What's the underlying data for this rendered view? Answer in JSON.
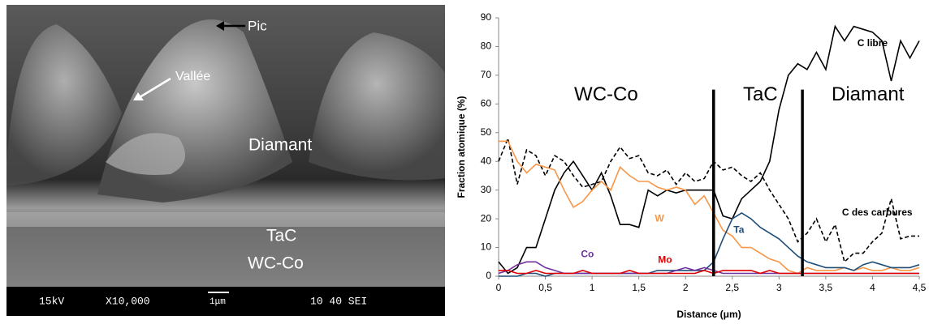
{
  "image": {
    "labels": [
      "Pic",
      "Vallée",
      "Diamant",
      "TaC",
      "WC-Co"
    ],
    "info_bar": [
      "15kV",
      "X10,000",
      "1μm",
      "10 40 SEI"
    ]
  },
  "chart_data": {
    "type": "line",
    "x_label": "Distance (μm)",
    "y_label": "Fraction atomique (%)",
    "x": [
      0,
      0.1,
      0.2,
      0.3,
      0.4,
      0.5,
      0.6,
      0.7,
      0.8,
      0.9,
      1,
      1.1,
      1.2,
      1.3,
      1.4,
      1.5,
      1.6,
      1.7,
      1.8,
      1.9,
      2,
      2.1,
      2.2,
      2.3,
      2.4,
      2.5,
      2.6,
      2.7,
      2.8,
      2.9,
      3,
      3.1,
      3.2,
      3.3,
      3.4,
      3.5,
      3.6,
      3.7,
      3.8,
      3.9,
      4,
      4.1,
      4.2,
      4.3,
      4.4,
      4.5
    ],
    "xlim": [
      0,
      4.5
    ],
    "xticks": [
      0,
      {
        "value": 0.5,
        "label": "0,5"
      },
      1,
      {
        "value": 1.5,
        "label": "1,5"
      },
      2,
      {
        "value": 2.5,
        "label": "2,5"
      },
      3,
      {
        "value": 3.5,
        "label": "3,5"
      },
      4,
      {
        "value": 4.5,
        "label": "4,5"
      }
    ],
    "ylim": [
      0,
      90
    ],
    "yticks": [
      0,
      10,
      20,
      30,
      40,
      50,
      60,
      70,
      80,
      90
    ],
    "regions": [
      "WC-Co",
      "TaC",
      "Diamant"
    ],
    "boundaries": [
      2.3,
      3.25
    ],
    "series": [
      {
        "name": "C libre",
        "color": "#000000",
        "line_style": "solid",
        "values": [
          5,
          1,
          3,
          10,
          10,
          20,
          30,
          36,
          40,
          35,
          30,
          36,
          28,
          18,
          18,
          17,
          30,
          28,
          30,
          29,
          30,
          30,
          30,
          30,
          21,
          20,
          27,
          30,
          33,
          40,
          58,
          70,
          74,
          72,
          78,
          72,
          87,
          82,
          87,
          86,
          85,
          82,
          68,
          82,
          76,
          82
        ]
      },
      {
        "name": "C des carbures",
        "color": "#000000",
        "line_style": "dashed",
        "values": [
          40,
          48,
          32,
          44,
          42,
          35,
          42,
          40,
          35,
          31,
          32,
          33,
          40,
          45,
          41,
          42,
          36,
          35,
          37,
          32,
          36,
          33,
          34,
          40,
          37,
          38,
          35,
          33,
          36,
          30,
          25,
          20,
          12,
          15,
          20,
          12,
          18,
          5,
          8,
          8,
          12,
          15,
          27,
          13,
          14,
          14
        ]
      },
      {
        "name": "W",
        "color": "#f79646",
        "line_style": "solid",
        "values": [
          47,
          47,
          40,
          36,
          39,
          38,
          37,
          30,
          24,
          26,
          30,
          33,
          30,
          38,
          35,
          33,
          33,
          31,
          30,
          31,
          30,
          25,
          28,
          22,
          16,
          14,
          10,
          10,
          8,
          6,
          5,
          2,
          1,
          3,
          2,
          2,
          2,
          3,
          2,
          3,
          2,
          2,
          3,
          2,
          2,
          3
        ]
      },
      {
        "name": "Ta",
        "color": "#1f4e79",
        "line_style": "solid",
        "values": [
          0,
          0,
          0,
          1,
          1,
          0,
          1,
          1,
          1,
          1,
          1,
          1,
          1,
          1,
          1,
          1,
          1,
          2,
          2,
          2,
          2,
          2,
          2,
          5,
          13,
          20,
          22,
          20,
          17,
          15,
          13,
          10,
          7,
          5,
          4,
          3,
          3,
          3,
          2,
          4,
          5,
          4,
          3,
          3,
          3,
          4
        ]
      },
      {
        "name": "Co",
        "color": "#7030a0",
        "line_style": "solid",
        "values": [
          1,
          2,
          4,
          5,
          5,
          3,
          2,
          1,
          1,
          1,
          1,
          1,
          1,
          1,
          1,
          1,
          1,
          1,
          1,
          2,
          3,
          2,
          3,
          2,
          1,
          1,
          1,
          1,
          1,
          1,
          1,
          1,
          1,
          1,
          1,
          1,
          1,
          1,
          1,
          1,
          1,
          1,
          1,
          1,
          1,
          1
        ]
      },
      {
        "name": "Mo",
        "color": "#e00000",
        "line_style": "solid",
        "values": [
          2,
          2,
          1,
          1,
          2,
          1,
          1,
          1,
          1,
          2,
          1,
          1,
          1,
          1,
          2,
          1,
          1,
          1,
          1,
          1,
          1,
          1,
          2,
          1,
          2,
          2,
          2,
          2,
          1,
          2,
          1,
          1,
          1,
          1,
          1,
          1,
          1,
          1,
          1,
          1,
          1,
          1,
          1,
          1,
          1,
          1
        ]
      }
    ]
  }
}
